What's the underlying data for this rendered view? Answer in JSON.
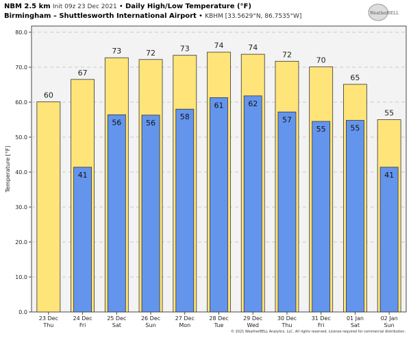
{
  "header": {
    "model": "NBM 2.5 km",
    "init": "Init 09z 23 Dec 2021",
    "sep": "•",
    "title": "Daily High/Low Temperature (°F)",
    "station": "Birmingham – Shuttlesworth International Airport",
    "station_meta": "KBHM [33.5629°N, 86.7535°W]"
  },
  "logo_text": "WeatherBELL",
  "footer": "© 2021 WeatherBELL Analytics, LLC. All rights reserved. License required for commercial distribution.",
  "colors": {
    "high": "#ffe47a",
    "low": "#6495ed",
    "plot_bg": "#f3f3f3"
  },
  "chart_data": {
    "type": "bar",
    "title": "Daily High/Low Temperature (°F)",
    "xlabel": "",
    "ylabel": "Temperature [°F]",
    "ylim": [
      0,
      81.5
    ],
    "yticks": [
      "0.0",
      "10.0",
      "20.0",
      "30.0",
      "40.0",
      "50.0",
      "60.0",
      "70.0",
      "80.0"
    ],
    "grid": true,
    "categories": [
      {
        "date": "23 Dec",
        "day": "Thu"
      },
      {
        "date": "24 Dec",
        "day": "Fri"
      },
      {
        "date": "25 Dec",
        "day": "Sat"
      },
      {
        "date": "26 Dec",
        "day": "Sun"
      },
      {
        "date": "27 Dec",
        "day": "Mon"
      },
      {
        "date": "28 Dec",
        "day": "Tue"
      },
      {
        "date": "29 Dec",
        "day": "Wed"
      },
      {
        "date": "30 Dec",
        "day": "Thu"
      },
      {
        "date": "31 Dec",
        "day": "Fri"
      },
      {
        "date": "01 Jan",
        "day": "Sat"
      },
      {
        "date": "02 Jan",
        "day": "Sun"
      }
    ],
    "series": [
      {
        "name": "High",
        "values": [
          60.1,
          66.5,
          72.7,
          72.2,
          73.4,
          74.3,
          73.7,
          71.7,
          70.1,
          65.1,
          55.0
        ],
        "labels": [
          "60",
          "67",
          "73",
          "72",
          "73",
          "74",
          "74",
          "72",
          "70",
          "65",
          "55"
        ]
      },
      {
        "name": "Low",
        "values": [
          null,
          41.4,
          56.4,
          56.3,
          58.0,
          61.3,
          61.8,
          57.2,
          54.5,
          54.8,
          41.4
        ],
        "labels": [
          "",
          "41",
          "56",
          "56",
          "58",
          "61",
          "62",
          "57",
          "55",
          "55",
          "41"
        ]
      }
    ]
  }
}
